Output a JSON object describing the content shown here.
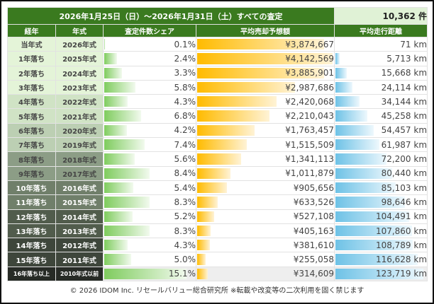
{
  "title": "2026年1月25日（日）〜2026年1月31日（土）すべての査定",
  "total_count": "10,362 件",
  "headers": [
    "経年",
    "年式",
    "査定件数シェア",
    "平均売却予想額",
    "平均走行距離"
  ],
  "rows": [
    {
      "age": "当年式",
      "model_year": "2026年式",
      "share": "0.1%",
      "share_value": 0.1,
      "price": "¥3,874,667",
      "price_value": 3874667,
      "mileage": "71 km",
      "mileage_value": 71
    },
    {
      "age": "1年落ち",
      "model_year": "2025年式",
      "share": "2.4%",
      "share_value": 2.4,
      "price": "¥4,142,569",
      "price_value": 4142569,
      "mileage": "5,713 km",
      "mileage_value": 5713
    },
    {
      "age": "2年落ち",
      "model_year": "2024年式",
      "share": "3.3%",
      "share_value": 3.3,
      "price": "¥3,885,901",
      "price_value": 3885901,
      "mileage": "15,668 km",
      "mileage_value": 15668
    },
    {
      "age": "3年落ち",
      "model_year": "2023年式",
      "share": "5.8%",
      "share_value": 5.8,
      "price": "¥2,987,686",
      "price_value": 2987686,
      "mileage": "24,114 km",
      "mileage_value": 24114
    },
    {
      "age": "4年落ち",
      "model_year": "2022年式",
      "share": "4.3%",
      "share_value": 4.3,
      "price": "¥2,420,068",
      "price_value": 2420068,
      "mileage": "34,144 km",
      "mileage_value": 34144
    },
    {
      "age": "5年落ち",
      "model_year": "2021年式",
      "share": "6.8%",
      "share_value": 6.8,
      "price": "¥2,210,043",
      "price_value": 2210043,
      "mileage": "45,258 km",
      "mileage_value": 45258
    },
    {
      "age": "6年落ち",
      "model_year": "2020年式",
      "share": "4.2%",
      "share_value": 4.2,
      "price": "¥1,763,457",
      "price_value": 1763457,
      "mileage": "54,457 km",
      "mileage_value": 54457
    },
    {
      "age": "7年落ち",
      "model_year": "2019年式",
      "share": "7.4%",
      "share_value": 7.4,
      "price": "¥1,515,509",
      "price_value": 1515509,
      "mileage": "61,987 km",
      "mileage_value": 61987
    },
    {
      "age": "8年落ち",
      "model_year": "2018年式",
      "share": "5.6%",
      "share_value": 5.6,
      "price": "¥1,341,113",
      "price_value": 1341113,
      "mileage": "72,200 km",
      "mileage_value": 72200
    },
    {
      "age": "9年落ち",
      "model_year": "2017年式",
      "share": "8.4%",
      "share_value": 8.4,
      "price": "¥1,011,879",
      "price_value": 1011879,
      "mileage": "80,440 km",
      "mileage_value": 80440
    },
    {
      "age": "10年落ち",
      "model_year": "2016年式",
      "share": "5.4%",
      "share_value": 5.4,
      "price": "¥905,656",
      "price_value": 905656,
      "mileage": "85,103 km",
      "mileage_value": 85103
    },
    {
      "age": "11年落ち",
      "model_year": "2015年式",
      "share": "8.3%",
      "share_value": 8.3,
      "price": "¥633,526",
      "price_value": 633526,
      "mileage": "98,646 km",
      "mileage_value": 98646
    },
    {
      "age": "12年落ち",
      "model_year": "2014年式",
      "share": "5.2%",
      "share_value": 5.2,
      "price": "¥527,108",
      "price_value": 527108,
      "mileage": "104,491 km",
      "mileage_value": 104491
    },
    {
      "age": "13年落ち",
      "model_year": "2013年式",
      "share": "8.3%",
      "share_value": 8.3,
      "price": "¥405,163",
      "price_value": 405163,
      "mileage": "107,860 km",
      "mileage_value": 107860
    },
    {
      "age": "14年落ち",
      "model_year": "2012年式",
      "share": "4.3%",
      "share_value": 4.3,
      "price": "¥381,610",
      "price_value": 381610,
      "mileage": "108,789 km",
      "mileage_value": 108789
    },
    {
      "age": "15年落ち",
      "model_year": "2011年式",
      "share": "5.0%",
      "share_value": 5.0,
      "price": "¥255,058",
      "price_value": 255058,
      "mileage": "116,628 km",
      "mileage_value": 116628
    },
    {
      "age": "16年落ち以上",
      "model_year": "2010年式以前",
      "share": "15.1%",
      "share_value": 15.1,
      "price": "¥314,609",
      "price_value": 314609,
      "mileage": "123,719 km",
      "mileage_value": 123719
    }
  ],
  "row_label_colors": [
    "#e4f4d8",
    "#e4f4d8",
    "#e4f4d8",
    "#e4f4d8",
    "#d0e3c5",
    "#d0e3c5",
    "#bccfb3",
    "#bccfb3",
    "#8c9d86",
    "#8c9d86",
    "#707f6a",
    "#707f6a",
    "#515c4c",
    "#515c4c",
    "#3e463b",
    "#3e463b",
    "#272b26"
  ],
  "footer": "© 2026 IDOM Inc. リセールバリュー総合研究所 ※転載や改変等の二次利用を固く禁じます"
}
